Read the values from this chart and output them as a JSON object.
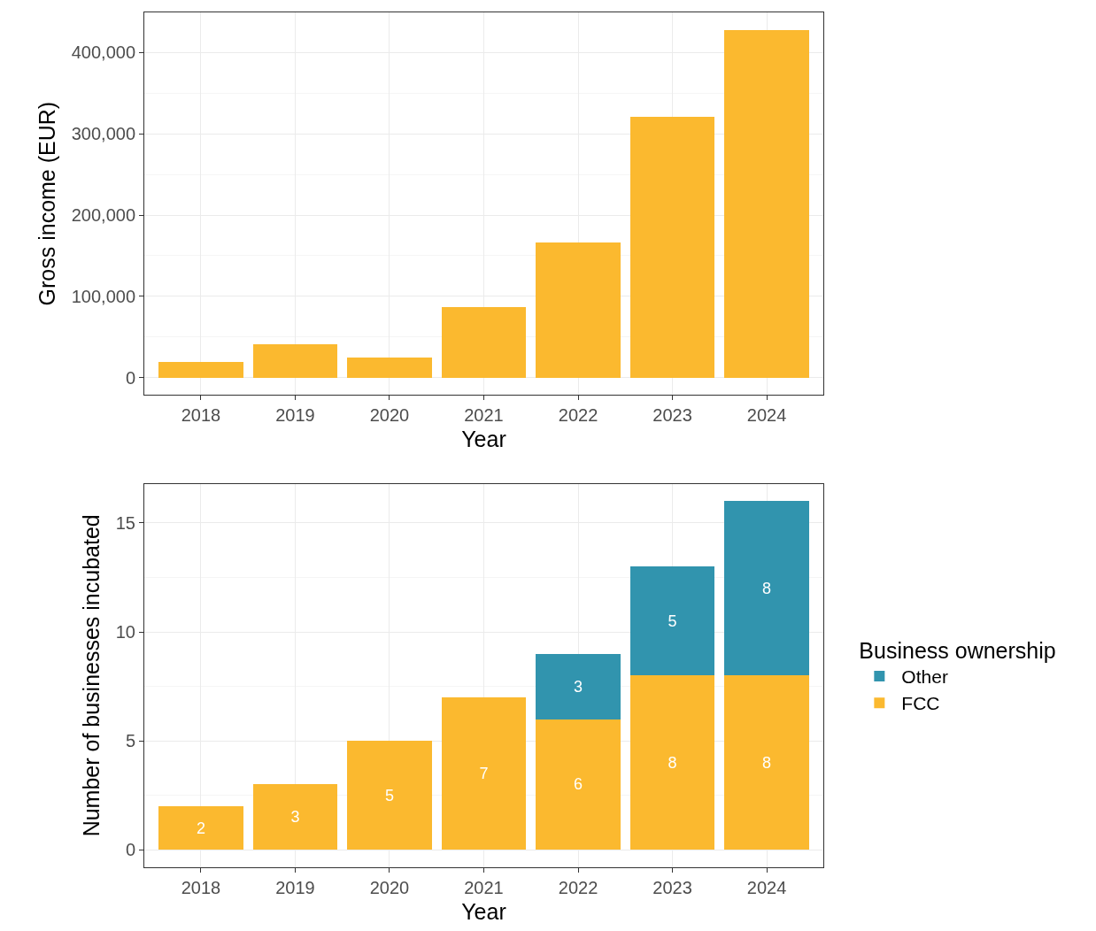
{
  "chart_data": [
    {
      "type": "bar",
      "xlabel": "Year",
      "ylabel": "Gross income (EUR)",
      "categories": [
        "2018",
        "2019",
        "2020",
        "2021",
        "2022",
        "2023",
        "2024"
      ],
      "series": [
        {
          "color": "#fbb92f",
          "values": [
            19000,
            41000,
            25000,
            87000,
            166000,
            321000,
            428000
          ]
        }
      ],
      "ylim": [
        -21400,
        449400
      ],
      "yticks": [
        {
          "value": 0,
          "label": "0"
        },
        {
          "value": 100000,
          "label": "100,000"
        },
        {
          "value": 200000,
          "label": "200,000"
        },
        {
          "value": 300000,
          "label": "300,000"
        },
        {
          "value": 400000,
          "label": "400,000"
        }
      ],
      "grid": true,
      "legend": false
    },
    {
      "type": "bar",
      "xlabel": "Year",
      "ylabel": "Number of businesses incubated",
      "legend_title": "Business ownership",
      "categories": [
        "2018",
        "2019",
        "2020",
        "2021",
        "2022",
        "2023",
        "2024"
      ],
      "stacked": true,
      "series": [
        {
          "name": "FCC",
          "color": "#fbb92f",
          "values": [
            2,
            3,
            5,
            7,
            6,
            8,
            8
          ]
        },
        {
          "name": "Other",
          "color": "#3194ae",
          "values": [
            null,
            null,
            null,
            null,
            3,
            5,
            8
          ]
        }
      ],
      "ylim": [
        -0.8,
        16.8
      ],
      "yticks": [
        0,
        5,
        10,
        15
      ],
      "grid": true,
      "legend": "right",
      "data_labels": true
    }
  ]
}
